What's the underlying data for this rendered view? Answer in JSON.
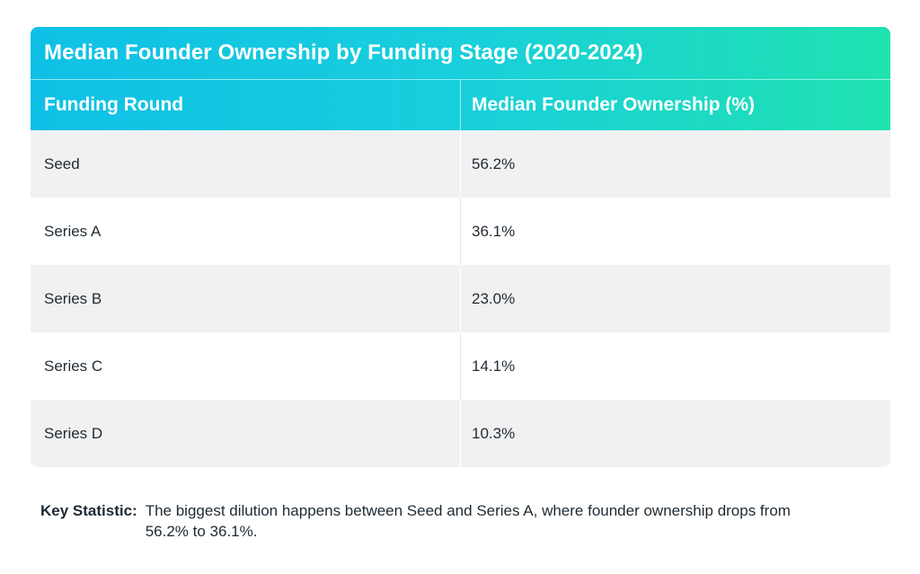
{
  "chart_data": {
    "type": "table",
    "title": "Median Founder Ownership by Funding Stage (2020-2024)",
    "columns": [
      "Funding Round",
      "Median Founder Ownership (%)"
    ],
    "rows": [
      {
        "round": "Seed",
        "ownership": "56.2%"
      },
      {
        "round": "Series A",
        "ownership": "36.1%"
      },
      {
        "round": "Series B",
        "ownership": "23.0%"
      },
      {
        "round": "Series C",
        "ownership": "14.1%"
      },
      {
        "round": "Series D",
        "ownership": "10.3%"
      }
    ],
    "categories": [
      "Seed",
      "Series A",
      "Series B",
      "Series C",
      "Series D"
    ],
    "values": [
      56.2,
      36.1,
      23.0,
      14.1,
      10.3
    ]
  },
  "key_statistic": {
    "label": "Key Statistic:",
    "text": "The biggest dilution happens between Seed and Series A, where founder ownership drops from 56.2% to 36.1%."
  },
  "colors": {
    "gradient_start": "#0fc0e6",
    "gradient_end": "#1fe2b0",
    "row_alt": "#f1f1f2",
    "text": "#1f2a33"
  }
}
